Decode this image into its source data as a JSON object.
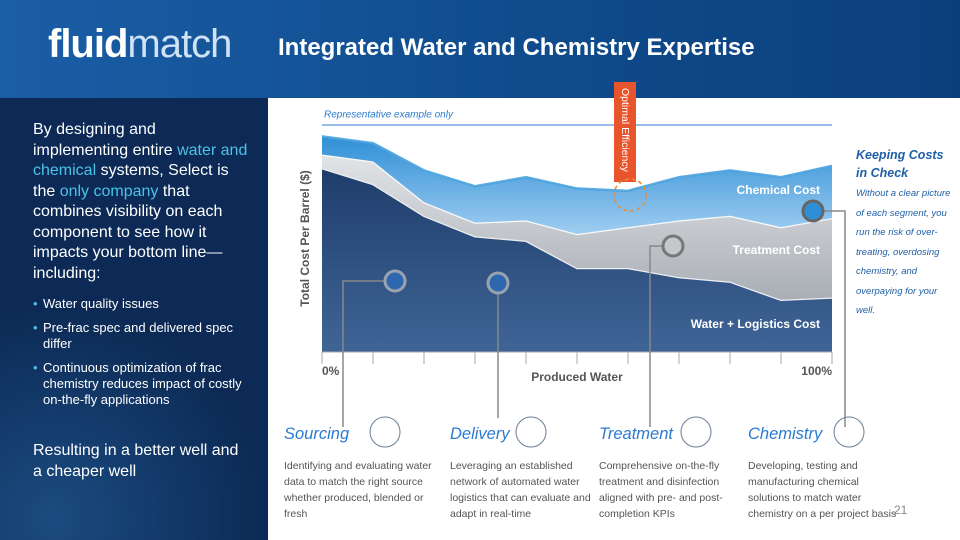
{
  "header": {
    "logo": {
      "bold": "fluid",
      "light": "match"
    },
    "title": "Integrated Water and Chemistry Expertise"
  },
  "intro": {
    "runs": [
      {
        "text": "By designing and implementing entire ",
        "highlight": false
      },
      {
        "text": "water and chemical",
        "highlight": true
      },
      {
        "text": " systems, Select is the ",
        "highlight": false
      },
      {
        "text": "only company",
        "highlight": true
      },
      {
        "text": " that combines visibility on each component to see how it impacts your bottom line—including:",
        "highlight": false
      }
    ]
  },
  "bullets": [
    "Water quality issues",
    "Pre-frac spec and delivered spec differ",
    "Continuous optimization of frac chemistry reduces impact of costly on-the-fly applications"
  ],
  "conclusion": "Resulting in a better well and a cheaper well",
  "chart_data": {
    "type": "area",
    "stacked": true,
    "note": "Representative example only",
    "annotation": "Optimal Efficiency",
    "ylabel": "Total Cost Per Barrel ($)",
    "xlabel": "Produced Water",
    "x": [
      0,
      10,
      20,
      30,
      40,
      50,
      60,
      70,
      80,
      90,
      100
    ],
    "xlim": [
      0,
      100
    ],
    "xticks": [
      {
        "value": 0,
        "label": "0%"
      },
      {
        "value": 100,
        "label": "100%"
      }
    ],
    "xminorticks": [
      10,
      20,
      30,
      40,
      50,
      60,
      70,
      80,
      90
    ],
    "ylim": [
      0,
      100
    ],
    "series": [
      {
        "name": "Water + Logistics Cost",
        "color": "#1e3d6b",
        "values": [
          81,
          74,
          60,
          51,
          49,
          37,
          37,
          33,
          31,
          23,
          24
        ]
      },
      {
        "name": "Treatment Cost",
        "color": "#bfc3c9",
        "values": [
          6,
          10,
          6,
          6,
          9,
          15,
          18,
          25,
          29,
          32,
          35
        ]
      },
      {
        "name": "Chemical Cost",
        "color": "#4ba3de",
        "values": [
          8,
          8,
          14,
          16,
          19,
          20,
          16,
          19,
          20,
          22,
          23
        ]
      }
    ]
  },
  "callout": {
    "title": "Keeping Costs in Check",
    "body": "Without a clear picture of each segment, you run the risk of over-treating, overdosing chemistry, and overpaying for your well."
  },
  "sections": [
    {
      "title": "Sourcing",
      "text": "Identifying and evaluating water data to match the right source whether produced, blended or fresh"
    },
    {
      "title": "Delivery",
      "text": "Leveraging an established network of automated water logistics that can evaluate and adapt in real-time"
    },
    {
      "title": "Treatment",
      "text": "Comprehensive on-the-fly treatment and disinfection aligned with pre- and post-completion KPIs"
    },
    {
      "title": "Chemistry",
      "text": "Developing, testing and manufacturing chemical solutions to match water chemistry on a per project basis"
    }
  ],
  "page_number": "21"
}
